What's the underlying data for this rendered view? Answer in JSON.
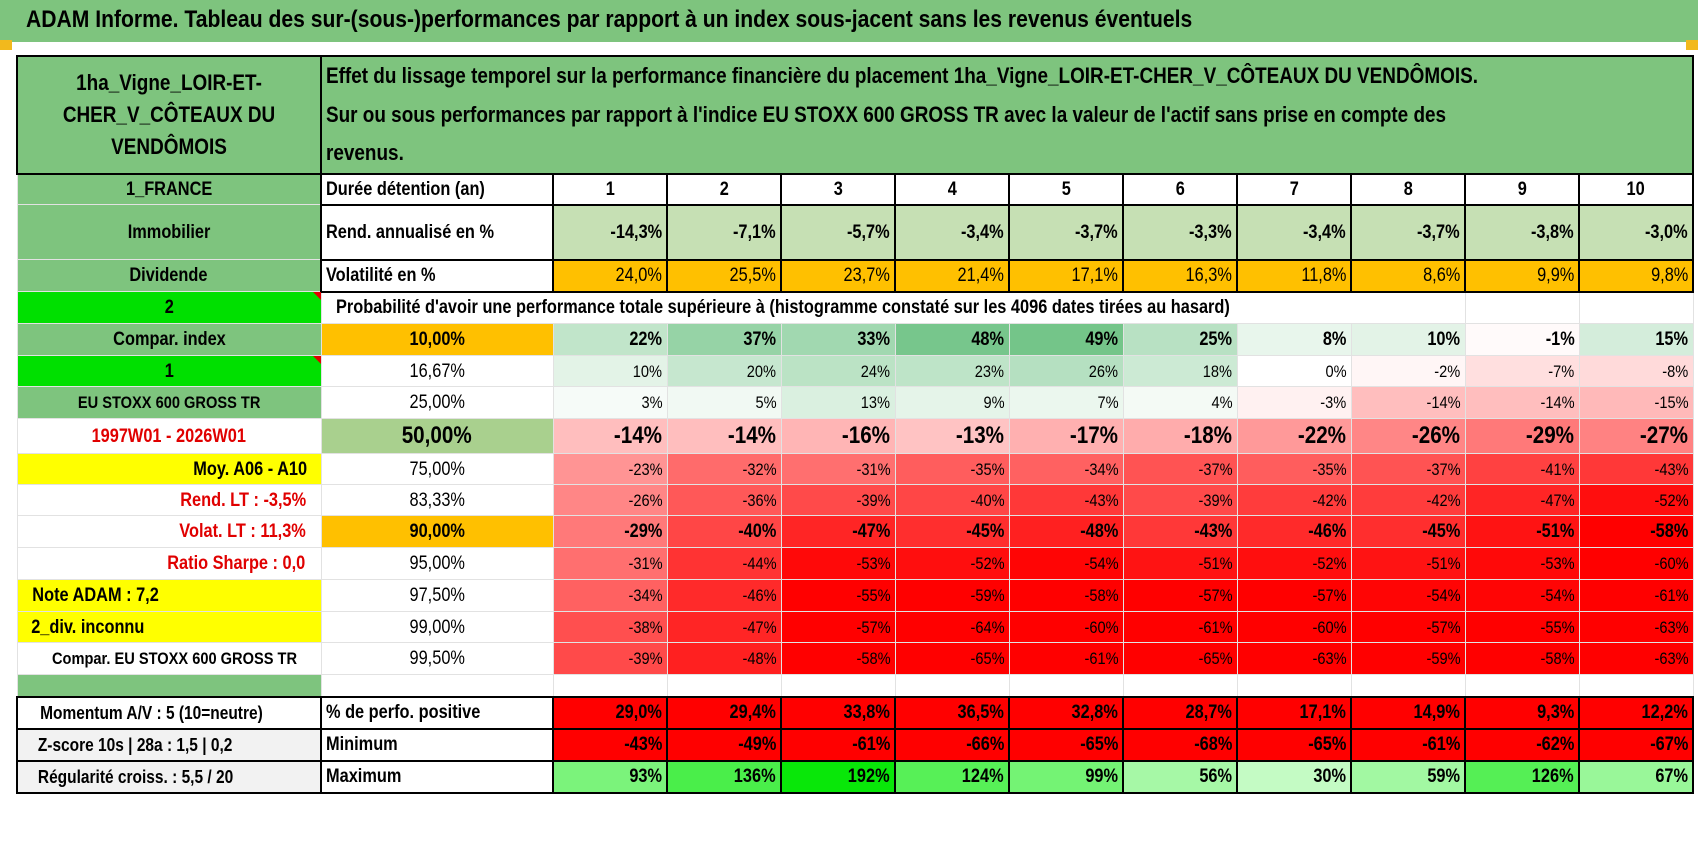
{
  "title": "ADAM Informe. Tableau des sur-(sous-)performances par rapport à un index sous-jacent sans les revenus éventuels",
  "asset_label": "1ha_Vigne_LOIR-ET-CHER_V_CÔTEAUX DU VENDÔMOIS",
  "description": "Effet du lissage temporel sur la performance financière du placement 1ha_Vigne_LOIR-ET-CHER_V_CÔTEAUX DU VENDÔMOIS. Sur ou sous performances par rapport à l'indice EU STOXX 600 GROSS TR avec la valeur de l'actif sans prise en compte des revenus.",
  "side": {
    "country": "1_FRANCE",
    "category": "Immobilier",
    "dividend": "Dividende",
    "code2": "2",
    "compar_index": "Compar. index",
    "code1": "1",
    "index_name": "EU STOXX 600 GROSS TR",
    "period": "1997W01 - 2026W01",
    "moy": "Moy. A06 - A10",
    "rend_lt": "Rend. LT :    -3,5%",
    "volat_lt": "Volat. LT :    11,3%",
    "sharpe": "Ratio Sharpe :     0,0",
    "note": "Note ADAM : 7,2",
    "div": "2_div. inconnu",
    "compar_full": "Compar. EU STOXX 600 GROSS TR",
    "momentum": "Momentum A/V : 5 (10=neutre)",
    "zscore": "Z-score 10s | 28a : 1,5 | 0,2",
    "regularite": "Régularité croiss. : 5,5 / 20"
  },
  "headers": {
    "duree": "Durée détention (an)",
    "rend": "Rend. annualisé en %",
    "vol": "Volatilité en %",
    "proba": "Probabilité d'avoir une performance totale supérieure à (histogramme constaté sur les 4096 dates tirées au hasard)",
    "positive": "% de perfo. positive",
    "minimum": "Minimum",
    "maximum": "Maximum"
  },
  "years": [
    "1",
    "2",
    "3",
    "4",
    "5",
    "6",
    "7",
    "8",
    "9",
    "10"
  ],
  "rend": [
    "-14,3%",
    "-7,1%",
    "-5,7%",
    "-3,4%",
    "-3,7%",
    "-3,3%",
    "-3,4%",
    "-3,7%",
    "-3,8%",
    "-3,0%"
  ],
  "vol": [
    "24,0%",
    "25,5%",
    "23,7%",
    "21,4%",
    "17,1%",
    "16,3%",
    "11,8%",
    "8,6%",
    "9,9%",
    "9,8%"
  ],
  "quantiles": [
    {
      "p": "10,00%",
      "values": [
        "22%",
        "37%",
        "33%",
        "48%",
        "49%",
        "25%",
        "8%",
        "10%",
        "-1%",
        "15%"
      ]
    },
    {
      "p": "16,67%",
      "values": [
        "10%",
        "20%",
        "24%",
        "23%",
        "26%",
        "18%",
        "0%",
        "-2%",
        "-7%",
        "-8%"
      ]
    },
    {
      "p": "25,00%",
      "values": [
        "3%",
        "5%",
        "13%",
        "9%",
        "7%",
        "4%",
        "-3%",
        "-14%",
        "-14%",
        "-15%"
      ]
    },
    {
      "p": "50,00%",
      "values": [
        "-14%",
        "-14%",
        "-16%",
        "-13%",
        "-17%",
        "-18%",
        "-22%",
        "-26%",
        "-29%",
        "-27%"
      ]
    },
    {
      "p": "75,00%",
      "values": [
        "-23%",
        "-32%",
        "-31%",
        "-35%",
        "-34%",
        "-37%",
        "-35%",
        "-37%",
        "-41%",
        "-43%"
      ]
    },
    {
      "p": "83,33%",
      "values": [
        "-26%",
        "-36%",
        "-39%",
        "-40%",
        "-43%",
        "-39%",
        "-42%",
        "-42%",
        "-47%",
        "-52%"
      ]
    },
    {
      "p": "90,00%",
      "values": [
        "-29%",
        "-40%",
        "-47%",
        "-45%",
        "-48%",
        "-43%",
        "-46%",
        "-45%",
        "-51%",
        "-58%"
      ]
    },
    {
      "p": "95,00%",
      "values": [
        "-31%",
        "-44%",
        "-53%",
        "-52%",
        "-54%",
        "-51%",
        "-52%",
        "-51%",
        "-53%",
        "-60%"
      ]
    },
    {
      "p": "97,50%",
      "values": [
        "-34%",
        "-46%",
        "-55%",
        "-59%",
        "-58%",
        "-57%",
        "-57%",
        "-54%",
        "-54%",
        "-61%"
      ]
    },
    {
      "p": "99,00%",
      "values": [
        "-38%",
        "-47%",
        "-57%",
        "-64%",
        "-60%",
        "-61%",
        "-60%",
        "-57%",
        "-55%",
        "-63%"
      ]
    },
    {
      "p": "99,50%",
      "values": [
        "-39%",
        "-48%",
        "-58%",
        "-65%",
        "-61%",
        "-65%",
        "-63%",
        "-59%",
        "-58%",
        "-63%"
      ]
    }
  ],
  "positive": [
    "29,0%",
    "29,4%",
    "33,8%",
    "36,5%",
    "32,8%",
    "28,7%",
    "17,1%",
    "14,9%",
    "9,3%",
    "12,2%"
  ],
  "minimum": [
    "-43%",
    "-49%",
    "-61%",
    "-66%",
    "-65%",
    "-68%",
    "-65%",
    "-61%",
    "-62%",
    "-67%"
  ],
  "maximum": [
    "93%",
    "136%",
    "192%",
    "124%",
    "99%",
    "56%",
    "30%",
    "59%",
    "126%",
    "67%"
  ],
  "colors": {
    "label_green": "#7ec47e",
    "bright_green": "#00e000",
    "yellow": "#ffff00",
    "orange": "#ffc000",
    "light_green": "#c6e0b4",
    "red": "#ff0000"
  }
}
